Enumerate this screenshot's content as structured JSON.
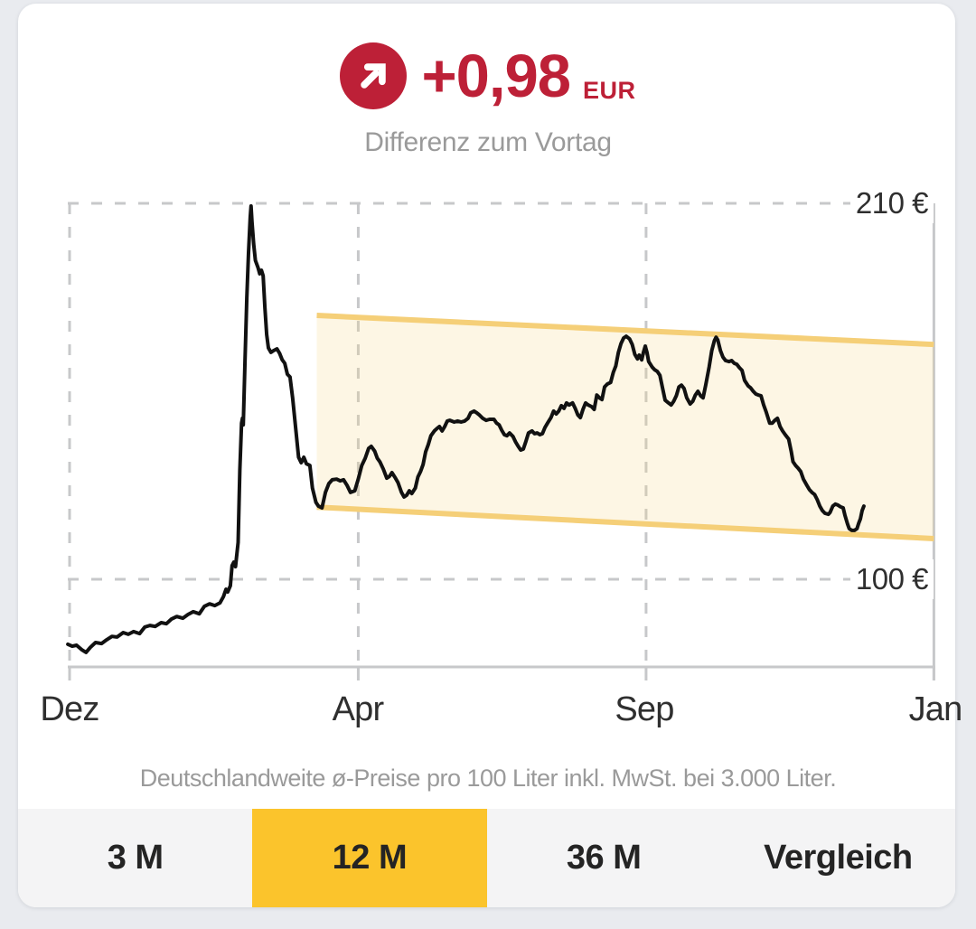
{
  "header": {
    "delta_value": "+0,98",
    "delta_currency": "EUR",
    "subtitle": "Differenz zum Vortag",
    "trend_icon": "arrow-up-right-icon"
  },
  "footnote": "Deutschlandweite ø-Preise pro 100 Liter inkl. MwSt. bei 3.000 Liter.",
  "tabs": [
    {
      "label": "3 M",
      "selected": false
    },
    {
      "label": "12 M",
      "selected": true
    },
    {
      "label": "36 M",
      "selected": false
    },
    {
      "label": "Vergleich",
      "selected": false
    }
  ],
  "colors": {
    "page_bg": "#e9ebef",
    "card_bg": "#ffffff",
    "accent_red": "#bd2037",
    "tab_selected": "#fbc42c",
    "tab_bar_bg": "#f4f4f5",
    "band_border": "#f5cf78",
    "band_fill": "rgba(248,216,130,0.22)",
    "grid": "#c7c8ca",
    "line": "#111111",
    "label_gray": "#9a9a9a"
  },
  "chart_data": {
    "type": "line",
    "title": "",
    "xlabel": "",
    "ylabel": "",
    "grid": "dashed",
    "legend": "none",
    "ylim": [
      74,
      212
    ],
    "x_ticks": [
      {
        "label": "Dez",
        "t": 0.0
      },
      {
        "label": "Apr",
        "t": 0.334
      },
      {
        "label": "Sep",
        "t": 0.667
      },
      {
        "label": "Jan",
        "t": 1.0
      }
    ],
    "y_ticks": [
      {
        "label": "210 €",
        "value": 210
      },
      {
        "label": "100 €",
        "value": 100
      }
    ],
    "band": {
      "t0": 0.286,
      "t1": 1.0,
      "top_start": 177.2,
      "top_end": 168.7,
      "bottom_start": 121.1,
      "bottom_end": 111.9
    },
    "series": [
      {
        "name": "price",
        "unit": "EUR",
        "points": [
          [
            -0.002,
            81.0
          ],
          [
            0.003,
            80.4
          ],
          [
            0.008,
            80.7
          ],
          [
            0.014,
            79.4
          ],
          [
            0.019,
            78.6
          ],
          [
            0.024,
            80.1
          ],
          [
            0.03,
            81.5
          ],
          [
            0.037,
            81.2
          ],
          [
            0.043,
            82.3
          ],
          [
            0.049,
            83.3
          ],
          [
            0.055,
            83.1
          ],
          [
            0.062,
            84.4
          ],
          [
            0.068,
            83.9
          ],
          [
            0.074,
            84.7
          ],
          [
            0.081,
            84.1
          ],
          [
            0.087,
            86.0
          ],
          [
            0.093,
            86.5
          ],
          [
            0.099,
            86.2
          ],
          [
            0.106,
            87.3
          ],
          [
            0.112,
            87.0
          ],
          [
            0.118,
            88.4
          ],
          [
            0.124,
            89.1
          ],
          [
            0.131,
            88.6
          ],
          [
            0.137,
            89.7
          ],
          [
            0.143,
            90.5
          ],
          [
            0.15,
            89.9
          ],
          [
            0.156,
            92.1
          ],
          [
            0.162,
            92.8
          ],
          [
            0.168,
            92.3
          ],
          [
            0.174,
            93.1
          ],
          [
            0.178,
            94.9
          ],
          [
            0.181,
            97.1
          ],
          [
            0.183,
            96.3
          ],
          [
            0.186,
            98.1
          ],
          [
            0.188,
            104.0
          ],
          [
            0.19,
            105.0
          ],
          [
            0.192,
            103.7
          ],
          [
            0.195,
            110.8
          ],
          [
            0.197,
            132.0
          ],
          [
            0.199,
            145.7
          ],
          [
            0.2,
            147.1
          ],
          [
            0.201,
            145.2
          ],
          [
            0.203,
            163.7
          ],
          [
            0.205,
            182.2
          ],
          [
            0.207,
            195.5
          ],
          [
            0.209,
            206.0
          ],
          [
            0.21,
            209.2
          ],
          [
            0.211,
            204.7
          ],
          [
            0.213,
            198.1
          ],
          [
            0.215,
            193.3
          ],
          [
            0.218,
            191.2
          ],
          [
            0.22,
            189.4
          ],
          [
            0.222,
            190.4
          ],
          [
            0.224,
            188.8
          ],
          [
            0.226,
            179.6
          ],
          [
            0.228,
            171.6
          ],
          [
            0.23,
            167.7
          ],
          [
            0.233,
            166.4
          ],
          [
            0.236,
            166.9
          ],
          [
            0.24,
            167.4
          ],
          [
            0.243,
            166.1
          ],
          [
            0.246,
            164.2
          ],
          [
            0.249,
            163.2
          ],
          [
            0.252,
            160.0
          ],
          [
            0.255,
            159.2
          ],
          [
            0.258,
            153.1
          ],
          [
            0.262,
            143.1
          ],
          [
            0.265,
            135.7
          ],
          [
            0.268,
            134.1
          ],
          [
            0.271,
            135.7
          ],
          [
            0.274,
            133.8
          ],
          [
            0.278,
            133.3
          ],
          [
            0.281,
            126.7
          ],
          [
            0.285,
            122.5
          ],
          [
            0.288,
            121.4
          ],
          [
            0.292,
            120.9
          ],
          [
            0.296,
            125.4
          ],
          [
            0.3,
            128.0
          ],
          [
            0.304,
            129.1
          ],
          [
            0.309,
            129.3
          ],
          [
            0.313,
            128.8
          ],
          [
            0.317,
            129.1
          ],
          [
            0.321,
            127.5
          ],
          [
            0.325,
            125.4
          ],
          [
            0.33,
            125.9
          ],
          [
            0.334,
            129.3
          ],
          [
            0.338,
            133.3
          ],
          [
            0.342,
            135.4
          ],
          [
            0.346,
            138.3
          ],
          [
            0.349,
            138.9
          ],
          [
            0.353,
            137.5
          ],
          [
            0.356,
            135.4
          ],
          [
            0.359,
            134.4
          ],
          [
            0.363,
            132.2
          ],
          [
            0.367,
            129.6
          ],
          [
            0.37,
            130.1
          ],
          [
            0.373,
            131.2
          ],
          [
            0.377,
            129.6
          ],
          [
            0.38,
            128.3
          ],
          [
            0.384,
            125.4
          ],
          [
            0.387,
            124.1
          ],
          [
            0.39,
            124.6
          ],
          [
            0.393,
            125.9
          ],
          [
            0.396,
            125.1
          ],
          [
            0.4,
            126.7
          ],
          [
            0.403,
            129.9
          ],
          [
            0.406,
            131.5
          ],
          [
            0.409,
            133.6
          ],
          [
            0.412,
            137.3
          ],
          [
            0.415,
            139.4
          ],
          [
            0.418,
            142.0
          ],
          [
            0.422,
            143.4
          ],
          [
            0.425,
            144.1
          ],
          [
            0.428,
            144.7
          ],
          [
            0.431,
            143.4
          ],
          [
            0.434,
            144.7
          ],
          [
            0.437,
            146.3
          ],
          [
            0.44,
            146.5
          ],
          [
            0.445,
            146.0
          ],
          [
            0.449,
            146.3
          ],
          [
            0.453,
            146.0
          ],
          [
            0.457,
            146.3
          ],
          [
            0.461,
            147.1
          ],
          [
            0.464,
            148.7
          ],
          [
            0.468,
            149.2
          ],
          [
            0.471,
            148.7
          ],
          [
            0.474,
            148.1
          ],
          [
            0.478,
            147.1
          ],
          [
            0.482,
            146.5
          ],
          [
            0.486,
            146.8
          ],
          [
            0.491,
            146.8
          ],
          [
            0.494,
            145.7
          ],
          [
            0.497,
            145.2
          ],
          [
            0.5,
            143.6
          ],
          [
            0.503,
            142.3
          ],
          [
            0.506,
            142.0
          ],
          [
            0.509,
            142.8
          ],
          [
            0.513,
            141.8
          ],
          [
            0.516,
            140.2
          ],
          [
            0.519,
            138.9
          ],
          [
            0.522,
            137.8
          ],
          [
            0.525,
            138.1
          ],
          [
            0.528,
            140.4
          ],
          [
            0.531,
            142.8
          ],
          [
            0.535,
            143.4
          ],
          [
            0.538,
            142.6
          ],
          [
            0.541,
            142.8
          ],
          [
            0.544,
            142.3
          ],
          [
            0.547,
            142.6
          ],
          [
            0.55,
            144.4
          ],
          [
            0.553,
            145.7
          ],
          [
            0.557,
            147.3
          ],
          [
            0.56,
            149.2
          ],
          [
            0.563,
            148.4
          ],
          [
            0.566,
            149.2
          ],
          [
            0.569,
            150.8
          ],
          [
            0.572,
            150.0
          ],
          [
            0.575,
            151.6
          ],
          [
            0.578,
            151.0
          ],
          [
            0.582,
            151.6
          ],
          [
            0.585,
            150.0
          ],
          [
            0.588,
            148.1
          ],
          [
            0.591,
            147.3
          ],
          [
            0.594,
            149.7
          ],
          [
            0.597,
            151.6
          ],
          [
            0.6,
            151.0
          ],
          [
            0.604,
            150.5
          ],
          [
            0.607,
            149.7
          ],
          [
            0.61,
            153.9
          ],
          [
            0.613,
            153.1
          ],
          [
            0.616,
            152.6
          ],
          [
            0.619,
            156.3
          ],
          [
            0.622,
            157.1
          ],
          [
            0.626,
            157.6
          ],
          [
            0.629,
            160.5
          ],
          [
            0.632,
            162.4
          ],
          [
            0.635,
            166.4
          ],
          [
            0.638,
            169.0
          ],
          [
            0.641,
            170.6
          ],
          [
            0.644,
            171.1
          ],
          [
            0.648,
            170.3
          ],
          [
            0.651,
            168.7
          ],
          [
            0.654,
            165.8
          ],
          [
            0.657,
            164.5
          ],
          [
            0.659,
            165.6
          ],
          [
            0.662,
            164.2
          ],
          [
            0.664,
            166.4
          ],
          [
            0.666,
            168.2
          ],
          [
            0.668,
            166.4
          ],
          [
            0.67,
            163.7
          ],
          [
            0.674,
            162.1
          ],
          [
            0.677,
            161.3
          ],
          [
            0.68,
            160.8
          ],
          [
            0.683,
            159.7
          ],
          [
            0.686,
            156.0
          ],
          [
            0.689,
            152.4
          ],
          [
            0.693,
            151.6
          ],
          [
            0.696,
            151.0
          ],
          [
            0.699,
            152.1
          ],
          [
            0.702,
            153.7
          ],
          [
            0.705,
            156.3
          ],
          [
            0.708,
            156.8
          ],
          [
            0.711,
            155.8
          ],
          [
            0.714,
            153.1
          ],
          [
            0.718,
            151.3
          ],
          [
            0.721,
            152.1
          ],
          [
            0.724,
            153.9
          ],
          [
            0.727,
            155.0
          ],
          [
            0.73,
            153.7
          ],
          [
            0.733,
            153.1
          ],
          [
            0.736,
            156.8
          ],
          [
            0.74,
            162.1
          ],
          [
            0.743,
            166.9
          ],
          [
            0.746,
            169.8
          ],
          [
            0.748,
            170.8
          ],
          [
            0.75,
            170.0
          ],
          [
            0.753,
            166.9
          ],
          [
            0.756,
            165.0
          ],
          [
            0.759,
            164.0
          ],
          [
            0.763,
            163.7
          ],
          [
            0.766,
            164.0
          ],
          [
            0.769,
            163.2
          ],
          [
            0.772,
            162.9
          ],
          [
            0.775,
            161.9
          ],
          [
            0.778,
            161.1
          ],
          [
            0.781,
            158.2
          ],
          [
            0.785,
            156.6
          ],
          [
            0.788,
            156.0
          ],
          [
            0.791,
            155.0
          ],
          [
            0.794,
            154.2
          ],
          [
            0.797,
            153.9
          ],
          [
            0.8,
            153.7
          ],
          [
            0.803,
            151.0
          ],
          [
            0.806,
            148.9
          ],
          [
            0.81,
            145.7
          ],
          [
            0.813,
            145.7
          ],
          [
            0.816,
            146.5
          ],
          [
            0.819,
            147.1
          ],
          [
            0.822,
            144.7
          ],
          [
            0.825,
            143.4
          ],
          [
            0.828,
            142.3
          ],
          [
            0.832,
            141.0
          ],
          [
            0.835,
            137.3
          ],
          [
            0.837,
            134.4
          ],
          [
            0.84,
            133.3
          ],
          [
            0.843,
            132.5
          ],
          [
            0.846,
            131.5
          ],
          [
            0.849,
            129.3
          ],
          [
            0.853,
            127.5
          ],
          [
            0.856,
            126.2
          ],
          [
            0.859,
            125.4
          ],
          [
            0.862,
            124.8
          ],
          [
            0.865,
            123.3
          ],
          [
            0.868,
            121.4
          ],
          [
            0.871,
            120.1
          ],
          [
            0.874,
            119.3
          ],
          [
            0.878,
            119.0
          ],
          [
            0.88,
            119.6
          ],
          [
            0.883,
            121.4
          ],
          [
            0.886,
            122.0
          ],
          [
            0.889,
            121.7
          ],
          [
            0.892,
            121.2
          ],
          [
            0.895,
            120.9
          ],
          [
            0.897,
            118.8
          ],
          [
            0.9,
            116.2
          ],
          [
            0.902,
            114.8
          ],
          [
            0.905,
            114.3
          ],
          [
            0.908,
            114.3
          ],
          [
            0.911,
            114.8
          ],
          [
            0.913,
            116.4
          ],
          [
            0.915,
            117.7
          ],
          [
            0.917,
            120.1
          ],
          [
            0.919,
            121.4
          ]
        ]
      }
    ]
  }
}
